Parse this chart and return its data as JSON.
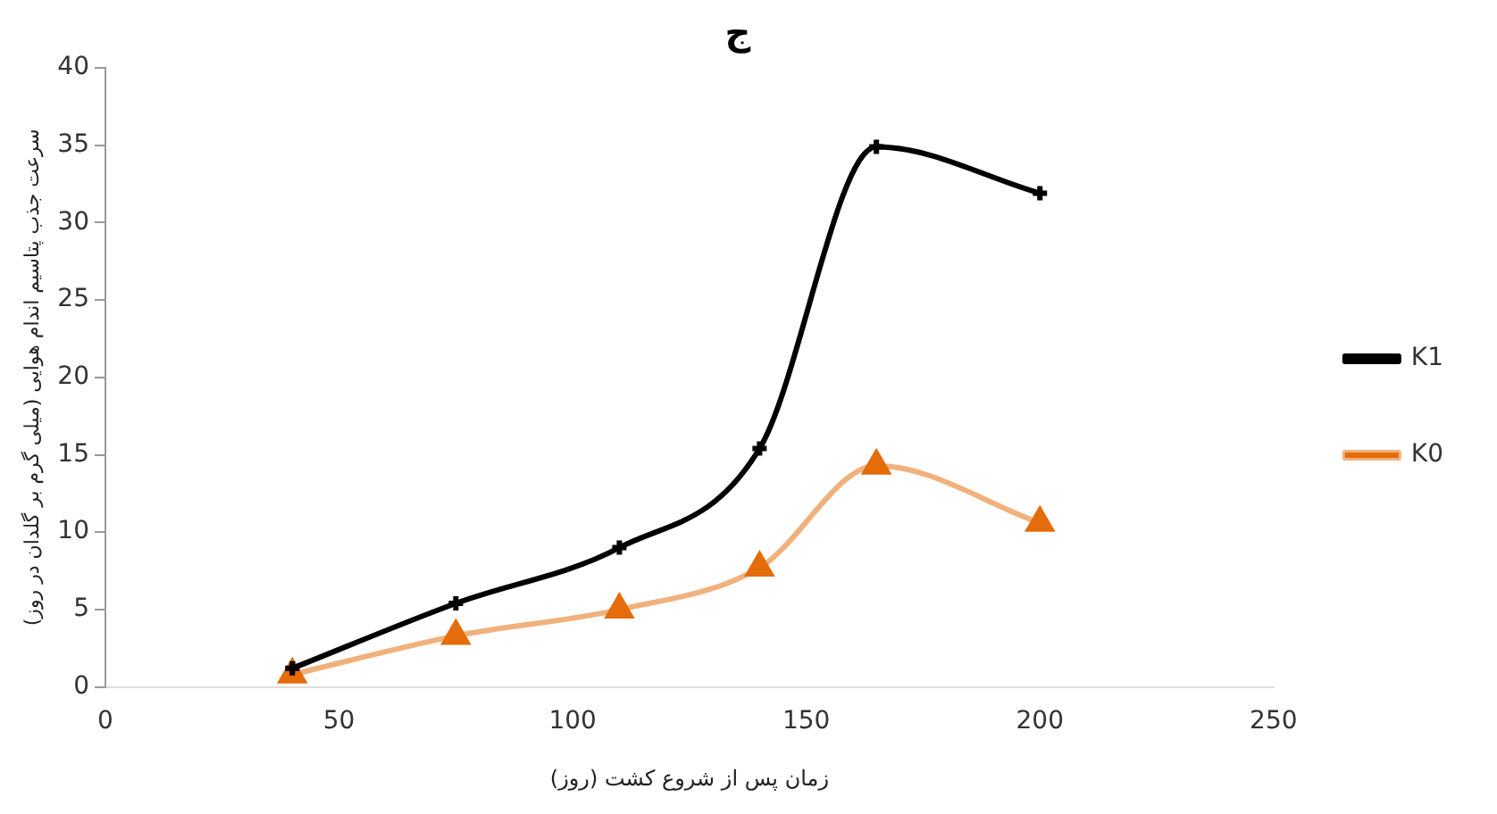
{
  "chart_data": {
    "type": "line",
    "title": "ج",
    "xlabel": "زمان پس از شروع کشت (روز)",
    "ylabel": "سرعت جذب پتاسیم اندام هوایی (میلی گرم بر گلدان در روز)",
    "x": [
      40,
      75,
      110,
      140,
      165,
      200
    ],
    "series": [
      {
        "name": "K1",
        "color": "#000000",
        "marker": "cross",
        "values": [
          1.2,
          5.4,
          9.0,
          15.4,
          34.9,
          31.9
        ]
      },
      {
        "name": "K0",
        "color": "#e46c0a",
        "marker": "triangle",
        "values": [
          0.8,
          3.3,
          5.0,
          7.7,
          14.3,
          10.6
        ]
      }
    ],
    "xlim": [
      0,
      250
    ],
    "xticks": [
      0,
      50,
      100,
      150,
      200,
      250
    ],
    "ylim": [
      0,
      40
    ],
    "yticks": [
      0,
      5,
      10,
      15,
      20,
      25,
      30,
      35,
      40
    ],
    "grid": false,
    "legend": "right",
    "line_style": "solid"
  }
}
